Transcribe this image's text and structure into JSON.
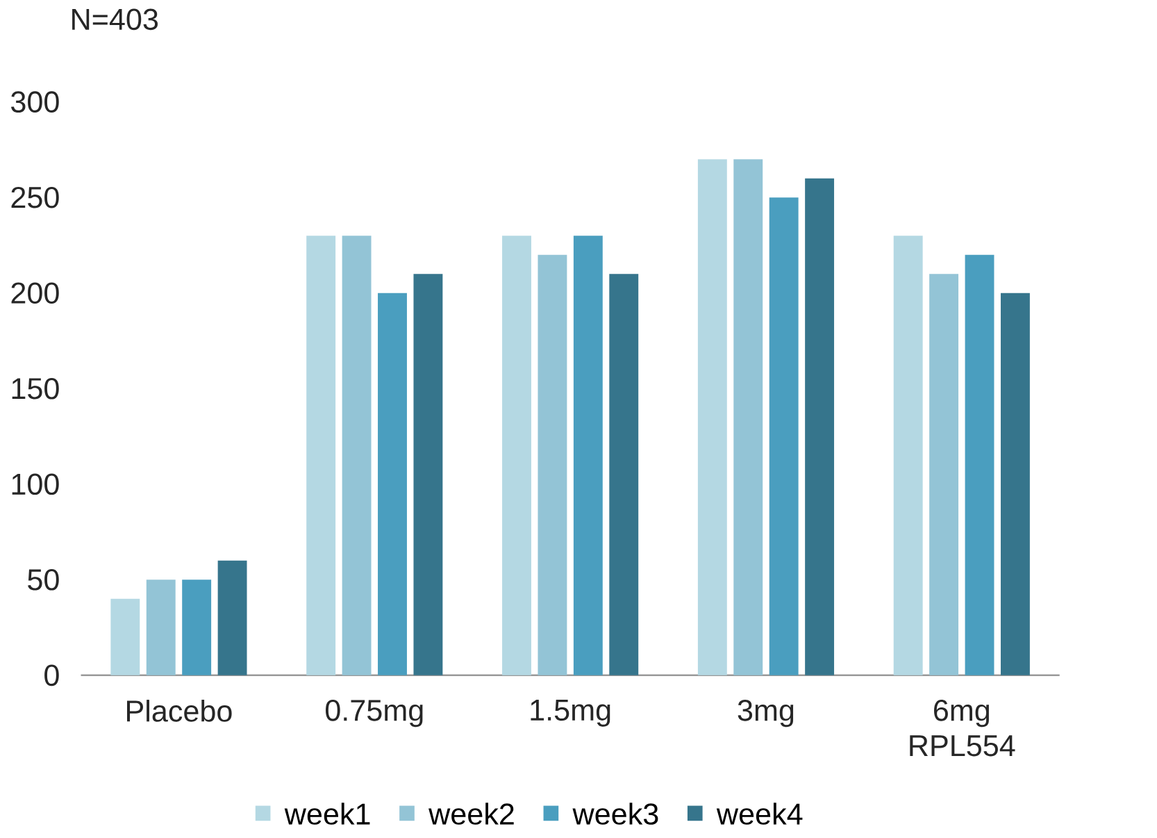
{
  "chart_data": {
    "type": "bar",
    "title": "N=403",
    "categories": [
      "Placebo",
      "0.75mg",
      "1.5mg",
      "3mg",
      "6mg RPL554"
    ],
    "series": [
      {
        "name": "week1",
        "color": "#b4d8e3",
        "values": [
          40,
          230,
          230,
          270,
          230
        ]
      },
      {
        "name": "week2",
        "color": "#93c4d6",
        "values": [
          50,
          230,
          220,
          270,
          210
        ]
      },
      {
        "name": "week3",
        "color": "#4a9ebf",
        "values": [
          50,
          200,
          230,
          250,
          220
        ]
      },
      {
        "name": "week4",
        "color": "#36758c",
        "values": [
          60,
          210,
          210,
          260,
          200
        ]
      }
    ],
    "ylim": [
      0,
      300
    ],
    "yticks": [
      0,
      50,
      100,
      150,
      200,
      250,
      300
    ],
    "grid": false,
    "legend": "bottom"
  }
}
